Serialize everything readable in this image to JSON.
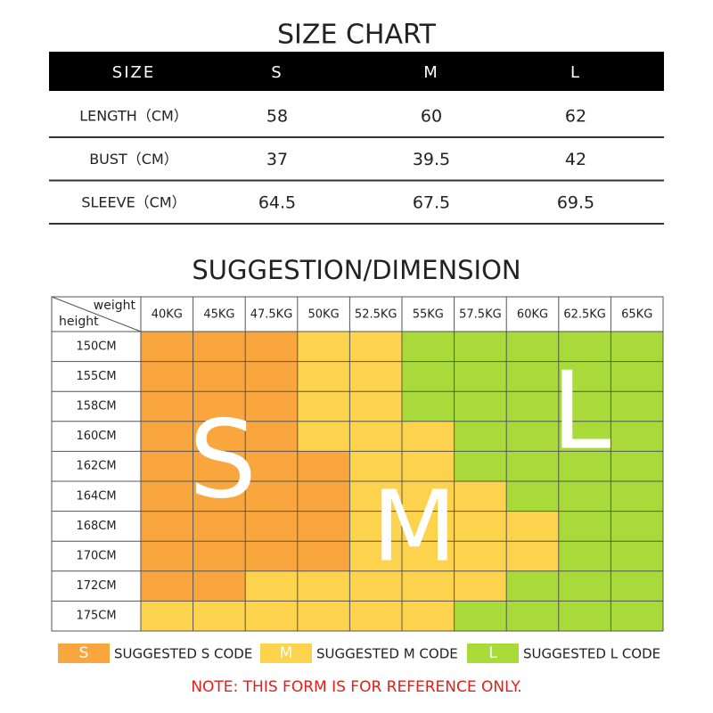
{
  "size_chart": {
    "title": "SIZE CHART",
    "header": [
      "SIZE",
      "S",
      "M",
      "L"
    ],
    "rows": [
      [
        "LENGTH（CM）",
        "58",
        "60",
        "62"
      ],
      [
        "BUST（CM）",
        "37",
        "39.5",
        "42"
      ],
      [
        "SLEEVE（CM）",
        "64.5",
        "67.5",
        "69.5"
      ]
    ]
  },
  "suggestion": {
    "title": "SUGGESTION/DIMENSION",
    "corner": {
      "top": "weight",
      "bottom": "height"
    },
    "weights": [
      "40KG",
      "45KG",
      "47.5KG",
      "50KG",
      "52.5KG",
      "55KG",
      "57.5KG",
      "60KG",
      "62.5KG",
      "65KG"
    ],
    "heights": [
      "150CM",
      "155CM",
      "158CM",
      "160CM",
      "162CM",
      "164CM",
      "168CM",
      "170CM",
      "172CM",
      "175CM"
    ],
    "grid": [
      [
        "S",
        "S",
        "S",
        "M",
        "M",
        "L",
        "L",
        "L",
        "L",
        "L"
      ],
      [
        "S",
        "S",
        "S",
        "M",
        "M",
        "L",
        "L",
        "L",
        "L",
        "L"
      ],
      [
        "S",
        "S",
        "S",
        "M",
        "M",
        "L",
        "L",
        "L",
        "L",
        "L"
      ],
      [
        "S",
        "S",
        "S",
        "M",
        "M",
        "M",
        "L",
        "L",
        "L",
        "L"
      ],
      [
        "S",
        "S",
        "S",
        "S",
        "M",
        "M",
        "L",
        "L",
        "L",
        "L"
      ],
      [
        "S",
        "S",
        "S",
        "S",
        "M",
        "M",
        "M",
        "L",
        "L",
        "L"
      ],
      [
        "S",
        "S",
        "S",
        "S",
        "M",
        "M",
        "M",
        "M",
        "L",
        "L"
      ],
      [
        "S",
        "S",
        "S",
        "S",
        "M",
        "M",
        "M",
        "M",
        "L",
        "L"
      ],
      [
        "S",
        "S",
        "M",
        "M",
        "M",
        "M",
        "M",
        "L",
        "L",
        "L"
      ],
      [
        "M",
        "M",
        "M",
        "M",
        "M",
        "M",
        "L",
        "L",
        "L",
        "L"
      ]
    ]
  },
  "legend": [
    {
      "code": "S",
      "label": "SUGGESTED S CODE",
      "color": "#f9a63e"
    },
    {
      "code": "M",
      "label": "SUGGESTED M CODE",
      "color": "#fdd24c"
    },
    {
      "code": "L",
      "label": "SUGGESTED L CODE",
      "color": "#a8db3a"
    }
  ],
  "note": "NOTE: THIS FORM IS FOR REFERENCE ONLY."
}
